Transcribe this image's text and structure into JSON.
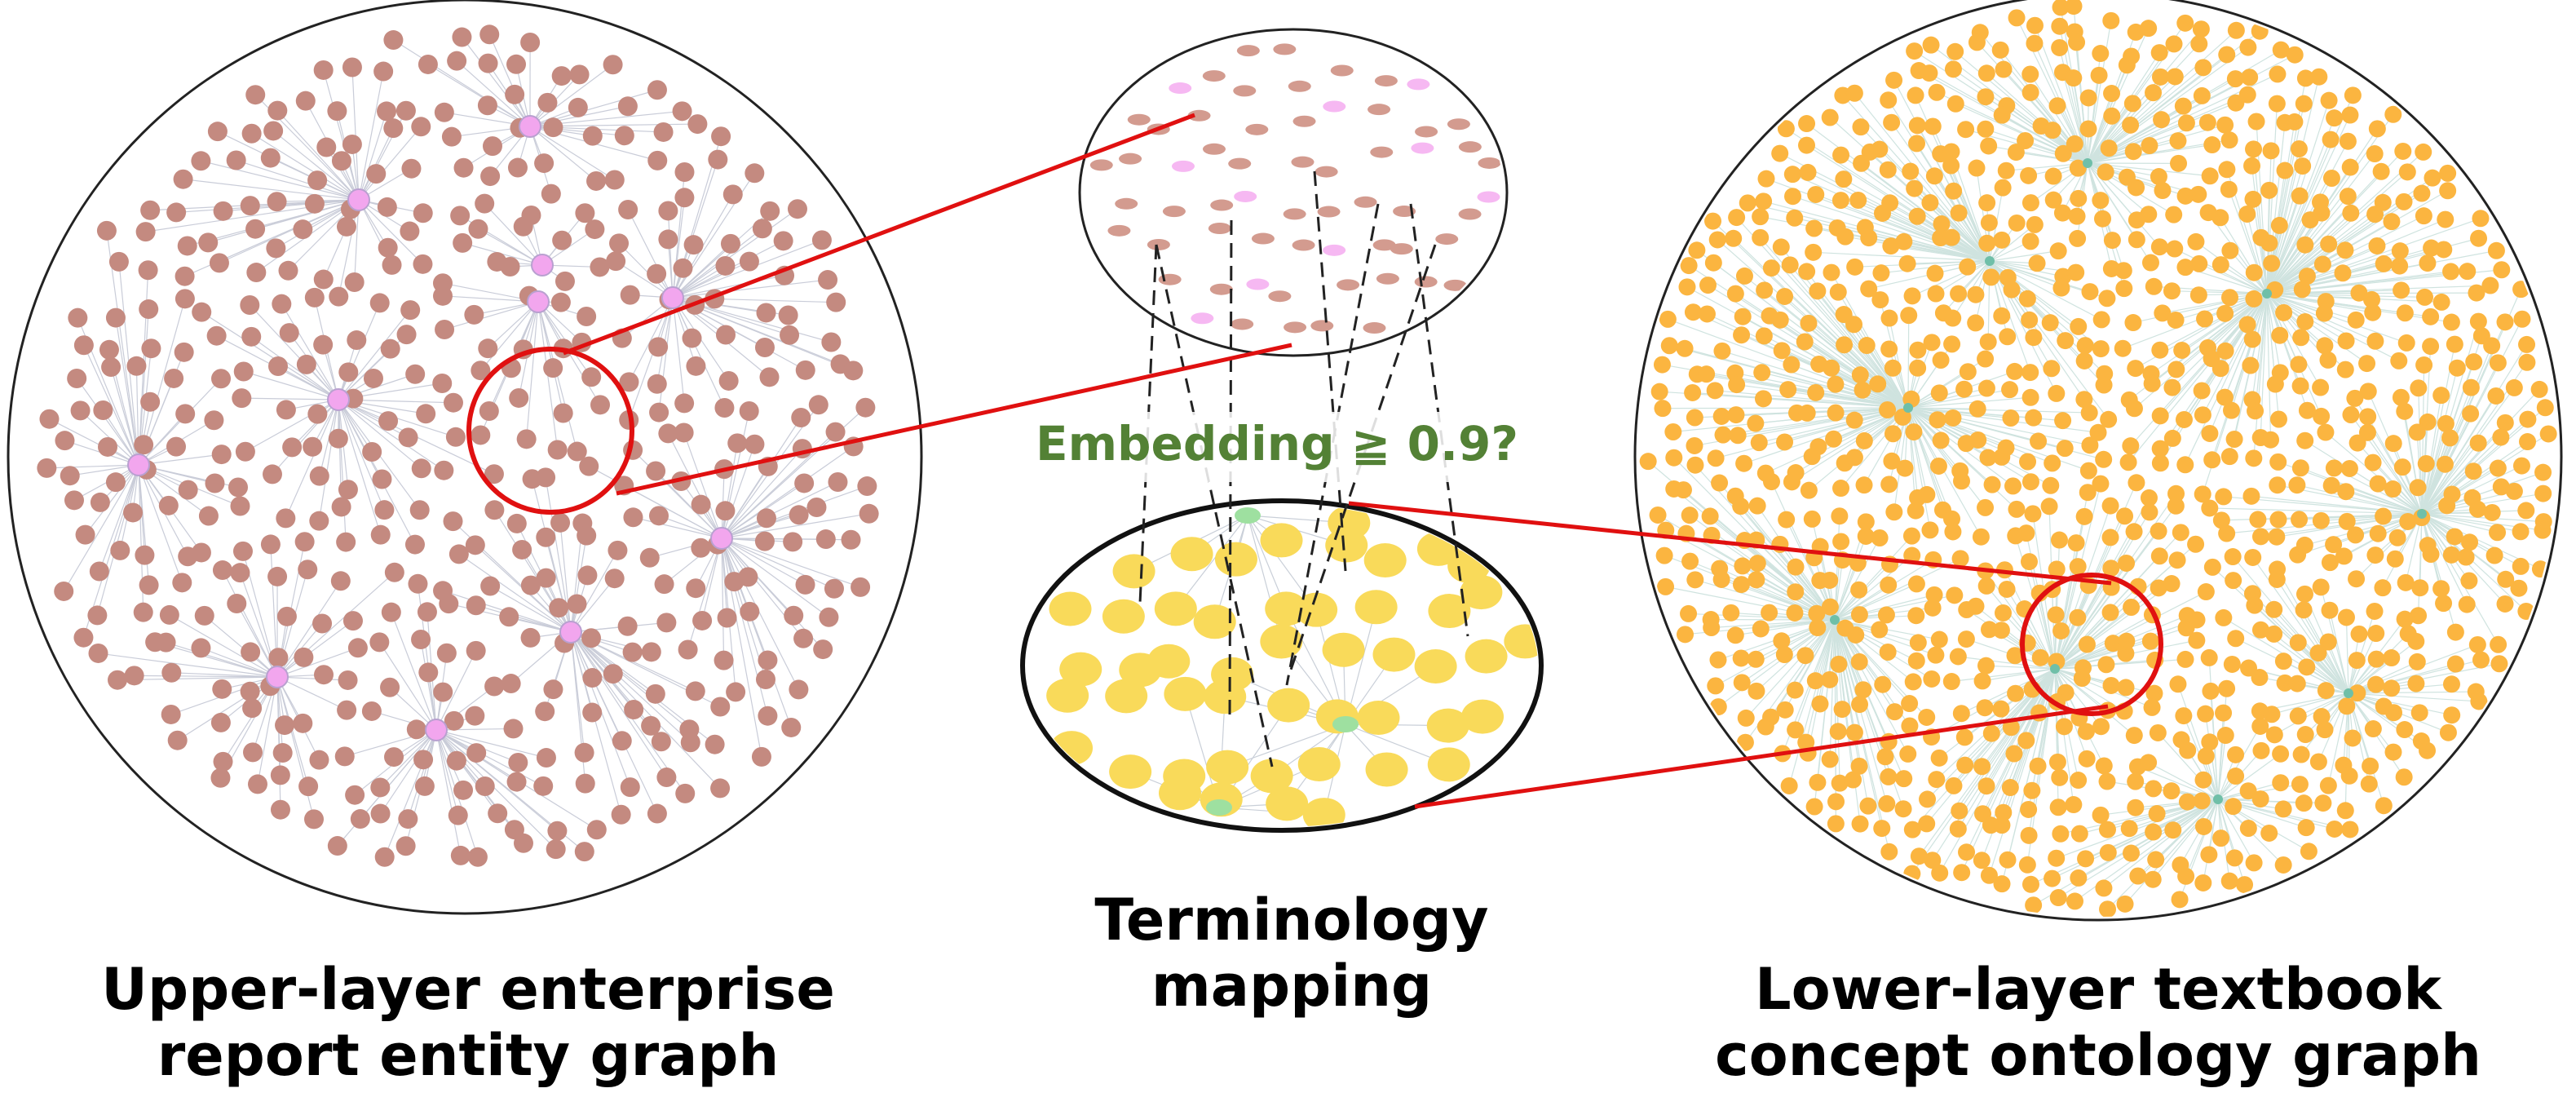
{
  "upper_graph": {
    "caption_line1": "Upper-layer enterprise",
    "caption_line2": "report entity graph"
  },
  "mapping": {
    "caption_line1": "Terminology",
    "caption_line2": "mapping",
    "criterion": "Embedding ≧ 0.9?"
  },
  "lower_graph": {
    "caption_line1": "Lower-layer textbook",
    "caption_line2": "concept ontology graph"
  }
}
